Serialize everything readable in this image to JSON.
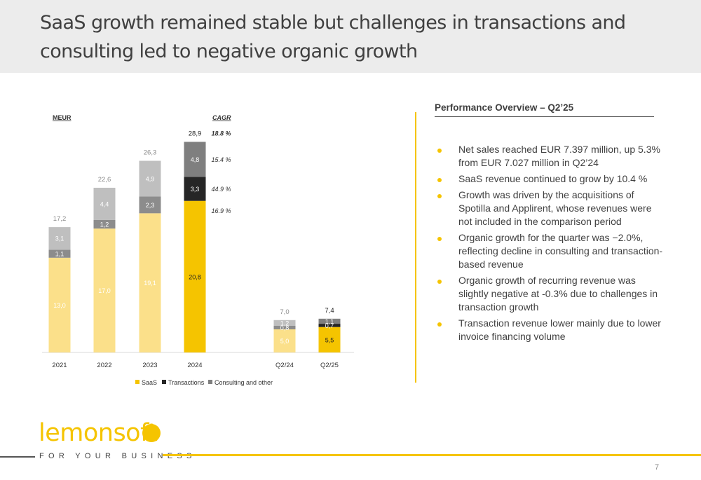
{
  "title": "SaaS growth remained stable but challenges in transactions and consulting led to negative organic growth",
  "chart_data": {
    "type": "bar",
    "stacked": true,
    "unit_label": "MEUR",
    "cagr_header": "CAGR",
    "categories": [
      "2021",
      "2022",
      "2023",
      "2024",
      "Q2/24",
      "Q2/25"
    ],
    "series": [
      {
        "name": "SaaS",
        "color": "#f5c400",
        "faded_color": "#fbe08a",
        "values": [
          13.0,
          17.0,
          19.1,
          20.8,
          5.0,
          5.5
        ],
        "labels": [
          "13,0",
          "17,0",
          "19,1",
          "20,8",
          "5,0",
          "5,5"
        ]
      },
      {
        "name": "Transactions",
        "color": "#262626",
        "faded_color": "#8c8c8c",
        "values": [
          1.1,
          1.2,
          2.3,
          3.3,
          0.8,
          0.7
        ],
        "labels": [
          "1,1",
          "1,2",
          "2,3",
          "3,3",
          "0,8",
          "0,7"
        ]
      },
      {
        "name": "Consulting and other",
        "color": "#7f7f7f",
        "faded_color": "#bfbfbf",
        "values": [
          3.1,
          4.4,
          4.9,
          4.8,
          1.2,
          1.1
        ],
        "labels": [
          "3,1",
          "4,4",
          "4,9",
          "4,8",
          "1,2",
          "1,1"
        ]
      }
    ],
    "totals": [
      "17,2",
      "22,6",
      "26,3",
      "28,9",
      "7,0",
      "7,4"
    ],
    "highlighted": [
      false,
      false,
      false,
      true,
      false,
      true
    ],
    "cagr": [
      {
        "value": "18.8 %",
        "row": "total"
      },
      {
        "value": "15.4 %",
        "row": "Consulting and other"
      },
      {
        "value": "44.9 %",
        "row": "Transactions"
      },
      {
        "value": "16.9 %",
        "row": "SaaS"
      }
    ],
    "legend": [
      "SaaS",
      "Transactions",
      "Consulting and other"
    ],
    "legend_position": "bottom"
  },
  "performance": {
    "title": "Performance Overview – Q2’25",
    "bullets": [
      "Net sales reached EUR 7.397 million, up 5.3% from EUR 7.027 million in Q2’24",
      "SaaS revenue continued to grow by 10.4 %",
      "Growth was driven by the acquisitions of Spotilla and Applirent, whose revenues were not included in the comparison period",
      "Organic growth for the quarter was −2.0%, reflecting decline in consulting and transaction-based revenue",
      "Organic growth of recurring revenue was slightly negative at -0.3% due to challenges in transaction growth",
      "Transaction revenue lower mainly due to lower invoice financing volume"
    ]
  },
  "footer": {
    "logo_text": "lemonsoft",
    "tagline": "FOR YOUR BUSINESS",
    "page_number": "7"
  },
  "colors": {
    "accent": "#f5c400",
    "header_band": "#ececec"
  }
}
